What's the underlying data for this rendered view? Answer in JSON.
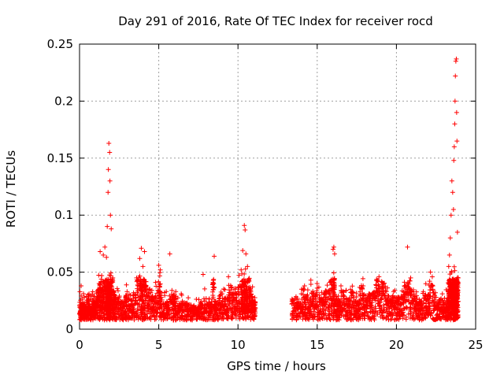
{
  "chart_data": {
    "type": "scatter",
    "title": "Day 291 of 2016, Rate Of TEC Index for receiver rocd",
    "xlabel": "GPS time / hours",
    "ylabel": "ROTI / TECUs",
    "xlim": [
      0,
      25
    ],
    "ylim": [
      0,
      0.25
    ],
    "xticks": [
      0,
      5,
      10,
      15,
      20,
      25
    ],
    "yticks": [
      0,
      0.05,
      0.1,
      0.15,
      0.2,
      0.25
    ],
    "xtick_labels": [
      "0",
      "5",
      "10",
      "15",
      "20",
      "25"
    ],
    "ytick_labels": [
      "0",
      "0.05",
      "0.1",
      "0.15",
      "0.2",
      "0.25"
    ],
    "grid": true,
    "marker": "+",
    "color": "#ff0000",
    "data_gap_hours": [
      11.2,
      13.4
    ],
    "series": [
      {
        "name": "ROTI",
        "points": [
          [
            0.0,
            0.021
          ],
          [
            0.1,
            0.038
          ],
          [
            0.2,
            0.017
          ],
          [
            0.3,
            0.028
          ],
          [
            0.4,
            0.012
          ],
          [
            0.5,
            0.025
          ],
          [
            0.6,
            0.031
          ],
          [
            0.7,
            0.015
          ],
          [
            0.8,
            0.022
          ],
          [
            0.9,
            0.027
          ],
          [
            1.0,
            0.018
          ],
          [
            1.1,
            0.024
          ],
          [
            1.2,
            0.035
          ],
          [
            1.3,
            0.068
          ],
          [
            1.4,
            0.047
          ],
          [
            1.5,
            0.065
          ],
          [
            1.6,
            0.072
          ],
          [
            1.7,
            0.063
          ],
          [
            1.75,
            0.09
          ],
          [
            1.8,
            0.12
          ],
          [
            1.82,
            0.14
          ],
          [
            1.85,
            0.163
          ],
          [
            1.9,
            0.155
          ],
          [
            1.92,
            0.13
          ],
          [
            1.95,
            0.1
          ],
          [
            2.0,
            0.088
          ],
          [
            2.1,
            0.045
          ],
          [
            2.2,
            0.03
          ],
          [
            2.3,
            0.022
          ],
          [
            2.5,
            0.028
          ],
          [
            2.7,
            0.019
          ],
          [
            2.9,
            0.025
          ],
          [
            3.0,
            0.033
          ],
          [
            3.2,
            0.021
          ],
          [
            3.4,
            0.027
          ],
          [
            3.6,
            0.045
          ],
          [
            3.8,
            0.062
          ],
          [
            3.9,
            0.071
          ],
          [
            4.0,
            0.055
          ],
          [
            4.1,
            0.068
          ],
          [
            4.2,
            0.038
          ],
          [
            4.4,
            0.032
          ],
          [
            4.6,
            0.024
          ],
          [
            4.8,
            0.041
          ],
          [
            5.0,
            0.056
          ],
          [
            5.1,
            0.052
          ],
          [
            5.3,
            0.022
          ],
          [
            5.5,
            0.018
          ],
          [
            5.7,
            0.066
          ],
          [
            5.9,
            0.025
          ],
          [
            6.0,
            0.03
          ],
          [
            6.2,
            0.021
          ],
          [
            6.4,
            0.019
          ],
          [
            6.6,
            0.017
          ],
          [
            6.8,
            0.023
          ],
          [
            7.0,
            0.015
          ],
          [
            7.2,
            0.02
          ],
          [
            7.4,
            0.012
          ],
          [
            7.6,
            0.018
          ],
          [
            7.8,
            0.048
          ],
          [
            8.0,
            0.022
          ],
          [
            8.2,
            0.016
          ],
          [
            8.4,
            0.039
          ],
          [
            8.5,
            0.064
          ],
          [
            8.6,
            0.019
          ],
          [
            8.8,
            0.025
          ],
          [
            9.0,
            0.031
          ],
          [
            9.2,
            0.022
          ],
          [
            9.4,
            0.046
          ],
          [
            9.6,
            0.037
          ],
          [
            9.8,
            0.028
          ],
          [
            10.0,
            0.033
          ],
          [
            10.2,
            0.052
          ],
          [
            10.3,
            0.069
          ],
          [
            10.4,
            0.091
          ],
          [
            10.45,
            0.087
          ],
          [
            10.5,
            0.066
          ],
          [
            10.6,
            0.055
          ],
          [
            10.7,
            0.042
          ],
          [
            10.8,
            0.034
          ],
          [
            10.9,
            0.028
          ],
          [
            11.0,
            0.022
          ],
          [
            11.1,
            0.018
          ],
          [
            13.4,
            0.022
          ],
          [
            13.6,
            0.027
          ],
          [
            13.8,
            0.018
          ],
          [
            14.0,
            0.031
          ],
          [
            14.2,
            0.038
          ],
          [
            14.4,
            0.025
          ],
          [
            14.6,
            0.043
          ],
          [
            14.8,
            0.029
          ],
          [
            15.0,
            0.036
          ],
          [
            15.2,
            0.021
          ],
          [
            15.4,
            0.027
          ],
          [
            15.6,
            0.033
          ],
          [
            15.8,
            0.041
          ],
          [
            16.0,
            0.07
          ],
          [
            16.05,
            0.072
          ],
          [
            16.1,
            0.066
          ],
          [
            16.3,
            0.025
          ],
          [
            16.5,
            0.038
          ],
          [
            16.7,
            0.029
          ],
          [
            16.9,
            0.022
          ],
          [
            17.1,
            0.035
          ],
          [
            17.3,
            0.028
          ],
          [
            17.5,
            0.02
          ],
          [
            17.7,
            0.033
          ],
          [
            17.9,
            0.038
          ],
          [
            18.1,
            0.025
          ],
          [
            18.3,
            0.031
          ],
          [
            18.5,
            0.027
          ],
          [
            18.7,
            0.039
          ],
          [
            18.9,
            0.046
          ],
          [
            19.1,
            0.041
          ],
          [
            19.3,
            0.036
          ],
          [
            19.5,
            0.029
          ],
          [
            19.7,
            0.023
          ],
          [
            19.9,
            0.034
          ],
          [
            20.1,
            0.025
          ],
          [
            20.3,
            0.029
          ],
          [
            20.5,
            0.038
          ],
          [
            20.7,
            0.072
          ],
          [
            20.9,
            0.045
          ],
          [
            21.1,
            0.031
          ],
          [
            21.3,
            0.027
          ],
          [
            21.5,
            0.021
          ],
          [
            21.7,
            0.033
          ],
          [
            21.9,
            0.026
          ],
          [
            22.1,
            0.042
          ],
          [
            22.3,
            0.035
          ],
          [
            22.5,
            0.028
          ],
          [
            22.7,
            0.022
          ],
          [
            22.9,
            0.031
          ],
          [
            23.1,
            0.018
          ],
          [
            23.2,
            0.025
          ],
          [
            23.3,
            0.055
          ],
          [
            23.35,
            0.065
          ],
          [
            23.4,
            0.08
          ],
          [
            23.45,
            0.1
          ],
          [
            23.5,
            0.13
          ],
          [
            23.55,
            0.12
          ],
          [
            23.6,
            0.105
          ],
          [
            23.62,
            0.148
          ],
          [
            23.65,
            0.16
          ],
          [
            23.68,
            0.18
          ],
          [
            23.7,
            0.2
          ],
          [
            23.72,
            0.222
          ],
          [
            23.75,
            0.235
          ],
          [
            23.78,
            0.237
          ],
          [
            23.8,
            0.19
          ],
          [
            23.82,
            0.165
          ],
          [
            23.85,
            0.085
          ],
          [
            23.9,
            0.045
          ]
        ]
      }
    ]
  }
}
